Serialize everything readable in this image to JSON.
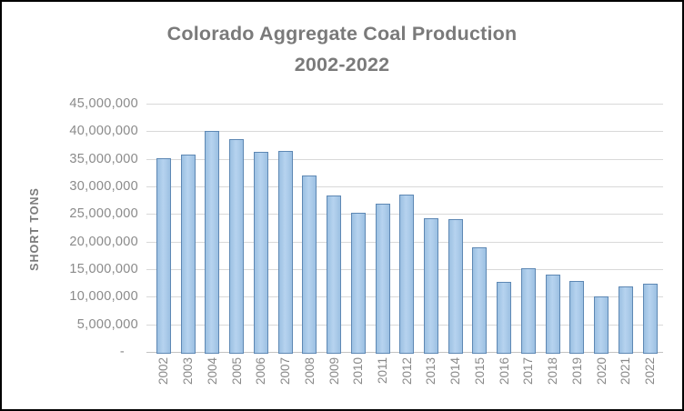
{
  "chart_data": {
    "type": "bar",
    "title": "Colorado Aggregate Coal Production",
    "subtitle": "2002-2022",
    "ylabel": "SHORT TONS",
    "xlabel": "",
    "categories": [
      "2002",
      "2003",
      "2004",
      "2005",
      "2006",
      "2007",
      "2008",
      "2009",
      "2010",
      "2011",
      "2012",
      "2013",
      "2014",
      "2015",
      "2016",
      "2017",
      "2018",
      "2019",
      "2020",
      "2021",
      "2022"
    ],
    "values": [
      35100000,
      35800000,
      40000000,
      38500000,
      36300000,
      36400000,
      32000000,
      28300000,
      25200000,
      26900000,
      28600000,
      24200000,
      24000000,
      19000000,
      12700000,
      15100000,
      14000000,
      12800000,
      10000000,
      11800000,
      12300000
    ],
    "ylim": [
      0,
      45000000
    ],
    "ytick_interval": 5000000,
    "yticks": [
      {
        "value": 0,
        "label": "-"
      },
      {
        "value": 5000000,
        "label": "5,000,000"
      },
      {
        "value": 10000000,
        "label": "10,000,000"
      },
      {
        "value": 15000000,
        "label": "15,000,000"
      },
      {
        "value": 20000000,
        "label": "20,000,000"
      },
      {
        "value": 25000000,
        "label": "25,000,000"
      },
      {
        "value": 30000000,
        "label": "30,000,000"
      },
      {
        "value": 35000000,
        "label": "35,000,000"
      },
      {
        "value": 40000000,
        "label": "40,000,000"
      },
      {
        "value": 45000000,
        "label": "45,000,000"
      }
    ],
    "grid": true,
    "legend": "none",
    "colors": {
      "bar_fill": "#A9CBE9",
      "bar_border": "#5E88B4",
      "gridline": "#D9D9D9",
      "axis_line": "#C3C3C3",
      "title_text": "#7A7A7A",
      "tick_text": "#8A8A8A",
      "chart_border": "#000000",
      "background": "#FFFFFF"
    }
  }
}
